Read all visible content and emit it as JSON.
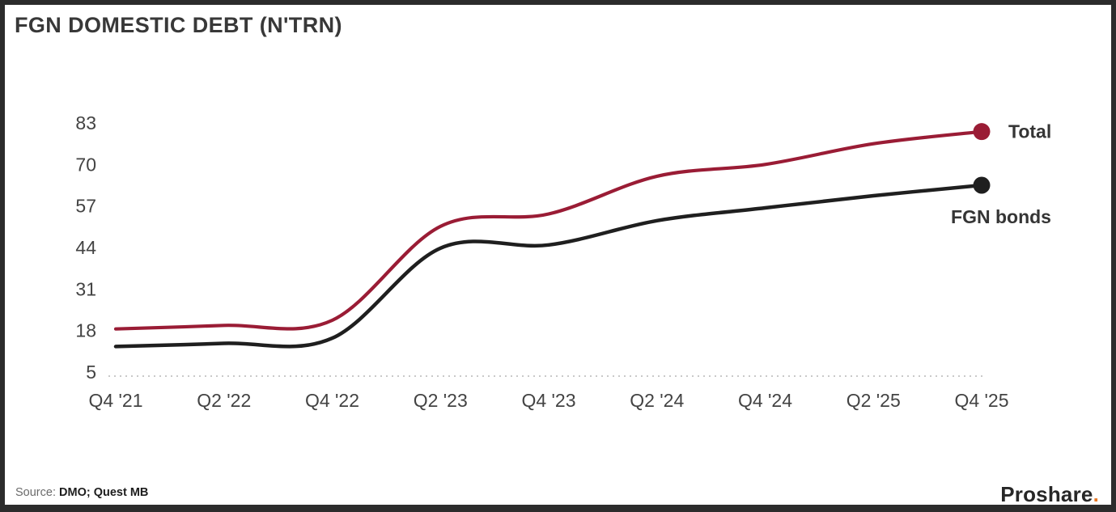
{
  "header": {
    "title": "FGN DOMESTIC DEBT (N'TRN)"
  },
  "chart_data": {
    "type": "line",
    "title": "FGN DOMESTIC DEBT (N'TRN)",
    "unit": "N'TRN",
    "categories": [
      "Q4 '21",
      "Q2 '22",
      "Q4 '22",
      "Q2 '23",
      "Q4 '23",
      "Q2 '24",
      "Q4 '24",
      "Q2 '25",
      "Q4 '25"
    ],
    "series": [
      {
        "name": "Total",
        "color": "#9a1c35",
        "stroke_width": 4.2,
        "values": [
          18.5,
          19.6,
          21.2,
          50.6,
          54.5,
          66.3,
          70.0,
          76.5,
          80.3
        ]
      },
      {
        "name": "FGN bonds",
        "color": "#1f1f1f",
        "stroke_width": 4.5,
        "values": [
          13.0,
          14.0,
          15.6,
          43.8,
          44.8,
          52.4,
          56.4,
          60.2,
          63.5
        ]
      }
    ],
    "y_ticks": [
      83,
      70,
      57,
      44,
      31,
      18,
      5
    ],
    "ylim": [
      5,
      83
    ],
    "xlabel": "",
    "ylabel": "",
    "grid": "dotted x-axis baseline only",
    "baseline_color": "#c9c9c9",
    "legend_position": "right of line endpoints",
    "marker": "filled dot on last point"
  },
  "footer": {
    "source_label": "Source:",
    "source_value": "DMO; Quest MB",
    "brand": "Proshare",
    "brand_dot": ".",
    "brand_dot_color": "#e87722"
  }
}
